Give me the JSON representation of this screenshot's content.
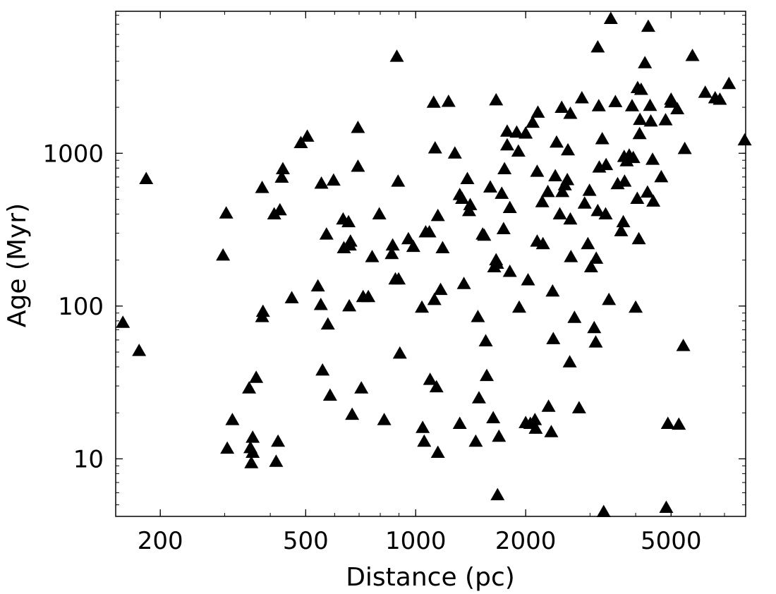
{
  "chart_data": {
    "type": "scatter",
    "title": "",
    "xlabel": "Distance (pc)",
    "ylabel": "Age (Myr)",
    "xscale": "log",
    "yscale": "log",
    "xlim": [
      151,
      8000
    ],
    "ylim": [
      4.2,
      8500
    ],
    "grid": false,
    "legend": "none",
    "marker": "filled-triangle",
    "marker_color": "#000000",
    "xticks": [
      200,
      500,
      1000,
      2000,
      5000
    ],
    "xtick_labels": [
      "200",
      "500",
      "1000",
      "2000",
      "5000"
    ],
    "yticks": [
      10,
      100,
      1000
    ],
    "ytick_labels": [
      "10",
      "100",
      "1000"
    ],
    "points": [
      [
        158,
        78
      ],
      [
        175,
        51
      ],
      [
        183,
        680
      ],
      [
        297,
        215
      ],
      [
        303,
        405
      ],
      [
        305,
        11.7
      ],
      [
        315,
        18
      ],
      [
        350,
        29
      ],
      [
        355,
        9.4
      ],
      [
        353,
        11.8
      ],
      [
        358,
        11
      ],
      [
        358,
        13.8
      ],
      [
        366,
        34
      ],
      [
        382,
        92
      ],
      [
        380,
        85
      ],
      [
        380,
        595
      ],
      [
        410,
        400
      ],
      [
        415,
        9.6
      ],
      [
        420,
        13
      ],
      [
        425,
        425
      ],
      [
        430,
        695
      ],
      [
        433,
        790
      ],
      [
        458,
        113
      ],
      [
        485,
        1170
      ],
      [
        505,
        1290
      ],
      [
        540,
        135
      ],
      [
        550,
        102
      ],
      [
        556,
        38
      ],
      [
        552,
        635
      ],
      [
        570,
        295
      ],
      [
        575,
        76
      ],
      [
        583,
        26
      ],
      [
        596,
        665
      ],
      [
        633,
        370
      ],
      [
        636,
        240
      ],
      [
        655,
        355
      ],
      [
        658,
        100
      ],
      [
        663,
        265
      ],
      [
        660,
        250
      ],
      [
        670,
        19.5
      ],
      [
        695,
        820
      ],
      [
        695,
        1470
      ],
      [
        710,
        29
      ],
      [
        718,
        115
      ],
      [
        742,
        115
      ],
      [
        760,
        210
      ],
      [
        795,
        400
      ],
      [
        820,
        18
      ],
      [
        865,
        250
      ],
      [
        860,
        220
      ],
      [
        888,
        4300
      ],
      [
        880,
        150
      ],
      [
        895,
        655
      ],
      [
        898,
        150
      ],
      [
        905,
        49
      ],
      [
        955,
        275
      ],
      [
        985,
        245
      ],
      [
        1040,
        98
      ],
      [
        1045,
        16
      ],
      [
        1055,
        13
      ],
      [
        1065,
        305
      ],
      [
        1090,
        305
      ],
      [
        1095,
        33
      ],
      [
        1120,
        2150
      ],
      [
        1125,
        110
      ],
      [
        1130,
        1080
      ],
      [
        1140,
        29.5
      ],
      [
        1150,
        11
      ],
      [
        1150,
        390
      ],
      [
        1170,
        128
      ],
      [
        1185,
        240
      ],
      [
        1230,
        2180
      ],
      [
        1280,
        1000
      ],
      [
        1320,
        17
      ],
      [
        1320,
        535
      ],
      [
        1340,
        505
      ],
      [
        1355,
        140
      ],
      [
        1385,
        680
      ],
      [
        1400,
        420
      ],
      [
        1410,
        460
      ],
      [
        1460,
        13
      ],
      [
        1480,
        85
      ],
      [
        1490,
        25
      ],
      [
        1525,
        295
      ],
      [
        1540,
        290
      ],
      [
        1555,
        59
      ],
      [
        1565,
        35
      ],
      [
        1600,
        600
      ],
      [
        1630,
        18.5
      ],
      [
        1640,
        180
      ],
      [
        1660,
        200
      ],
      [
        1670,
        190
      ],
      [
        1675,
        5.8
      ],
      [
        1660,
        2230
      ],
      [
        1690,
        14
      ],
      [
        1720,
        545
      ],
      [
        1740,
        320
      ],
      [
        1750,
        790
      ],
      [
        1780,
        1130
      ],
      [
        1780,
        1390
      ],
      [
        1810,
        440
      ],
      [
        1810,
        168
      ],
      [
        1890,
        1370
      ],
      [
        1910,
        1030
      ],
      [
        1920,
        98
      ],
      [
        2000,
        17.2
      ],
      [
        2000,
        1350
      ],
      [
        2030,
        148
      ],
      [
        2060,
        17
      ],
      [
        2090,
        1590
      ],
      [
        2120,
        18
      ],
      [
        2130,
        15.8
      ],
      [
        2150,
        265
      ],
      [
        2160,
        1850
      ],
      [
        2150,
        760
      ],
      [
        2220,
        480
      ],
      [
        2230,
        255
      ],
      [
        2300,
        560
      ],
      [
        2310,
        22
      ],
      [
        2350,
        15
      ],
      [
        2370,
        125
      ],
      [
        2380,
        61
      ],
      [
        2410,
        710
      ],
      [
        2430,
        1180
      ],
      [
        2480,
        400
      ],
      [
        2510,
        1990
      ],
      [
        2520,
        560
      ],
      [
        2560,
        620
      ],
      [
        2600,
        670
      ],
      [
        2610,
        1050
      ],
      [
        2650,
        1820
      ],
      [
        2640,
        43
      ],
      [
        2650,
        370
      ],
      [
        2660,
        210
      ],
      [
        2720,
        84
      ],
      [
        2800,
        21.5
      ],
      [
        2850,
        2300
      ],
      [
        2900,
        470
      ],
      [
        2960,
        255
      ],
      [
        2990,
        570
      ],
      [
        3020,
        180
      ],
      [
        3080,
        72
      ],
      [
        3120,
        205
      ],
      [
        3110,
        58
      ],
      [
        3150,
        420
      ],
      [
        3150,
        4950
      ],
      [
        3170,
        2040
      ],
      [
        3180,
        810
      ],
      [
        3240,
        1240
      ],
      [
        3310,
        400
      ],
      [
        3320,
        840
      ],
      [
        3270,
        4.5
      ],
      [
        3380,
        110
      ],
      [
        3420,
        7600
      ],
      [
        3520,
        2170
      ],
      [
        3570,
        630
      ],
      [
        3650,
        310
      ],
      [
        3700,
        355
      ],
      [
        3730,
        655
      ],
      [
        3720,
        950
      ],
      [
        3780,
        890
      ],
      [
        3840,
        970
      ],
      [
        3910,
        2040
      ],
      [
        3940,
        935
      ],
      [
        4000,
        98
      ],
      [
        4040,
        505
      ],
      [
        4050,
        2680
      ],
      [
        4110,
        1660
      ],
      [
        4100,
        1340
      ],
      [
        4080,
        275
      ],
      [
        4140,
        2610
      ],
      [
        4240,
        3900
      ],
      [
        4310,
        555
      ],
      [
        4330,
        6750
      ],
      [
        4400,
        1620
      ],
      [
        4380,
        2050
      ],
      [
        4450,
        910
      ],
      [
        4470,
        485
      ],
      [
        4700,
        700
      ],
      [
        4830,
        1650
      ],
      [
        4850,
        4.8
      ],
      [
        4900,
        17
      ],
      [
        5000,
        2250
      ],
      [
        5000,
        2150
      ],
      [
        5200,
        1950
      ],
      [
        5250,
        16.8
      ],
      [
        5400,
        55
      ],
      [
        5450,
        1070
      ],
      [
        5720,
        4350
      ],
      [
        6200,
        2500
      ],
      [
        6600,
        2300
      ],
      [
        6800,
        2250
      ],
      [
        7200,
        2850
      ],
      [
        7950,
        1220
      ]
    ]
  }
}
